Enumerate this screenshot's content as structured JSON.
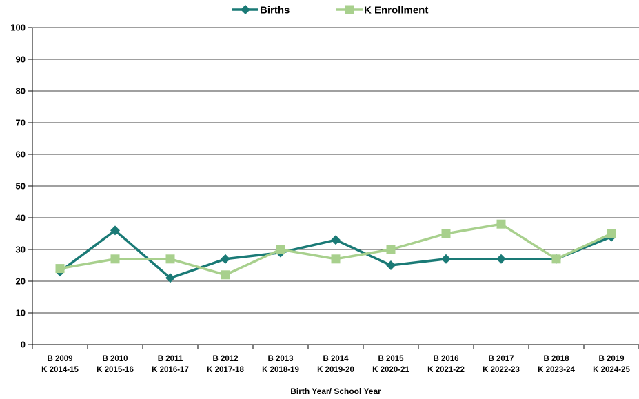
{
  "chart_data": {
    "type": "line",
    "xlabel": "Birth Year/ School Year",
    "ylabel": "",
    "ylim": [
      0,
      100
    ],
    "y_ticks": [
      0,
      10,
      20,
      30,
      40,
      50,
      60,
      70,
      80,
      90,
      100
    ],
    "grid": true,
    "legend_position": "top",
    "categories": [
      [
        "B 2009",
        "K 2014-15"
      ],
      [
        "B 2010",
        "K 2015-16"
      ],
      [
        "B 2011",
        "K 2016-17"
      ],
      [
        "B 2012",
        "K 2017-18"
      ],
      [
        "B 2013",
        "K 2018-19"
      ],
      [
        "B 2014",
        "K 2019-20"
      ],
      [
        "B 2015",
        "K 2020-21"
      ],
      [
        "B 2016",
        "K 2021-22"
      ],
      [
        "B 2017",
        "K 2022-23"
      ],
      [
        "B 2018",
        "K 2023-24"
      ],
      [
        "B 2019",
        "K 2024-25"
      ]
    ],
    "series": [
      {
        "name": "Births",
        "values": [
          23,
          36,
          21,
          27,
          29,
          33,
          25,
          27,
          27,
          27,
          34
        ],
        "color": "#1a7a76",
        "marker": "diamond"
      },
      {
        "name": "K Enrollment",
        "values": [
          24,
          27,
          27,
          22,
          30,
          27,
          30,
          35,
          38,
          27,
          35
        ],
        "color": "#a8d08d",
        "marker": "square"
      }
    ]
  }
}
